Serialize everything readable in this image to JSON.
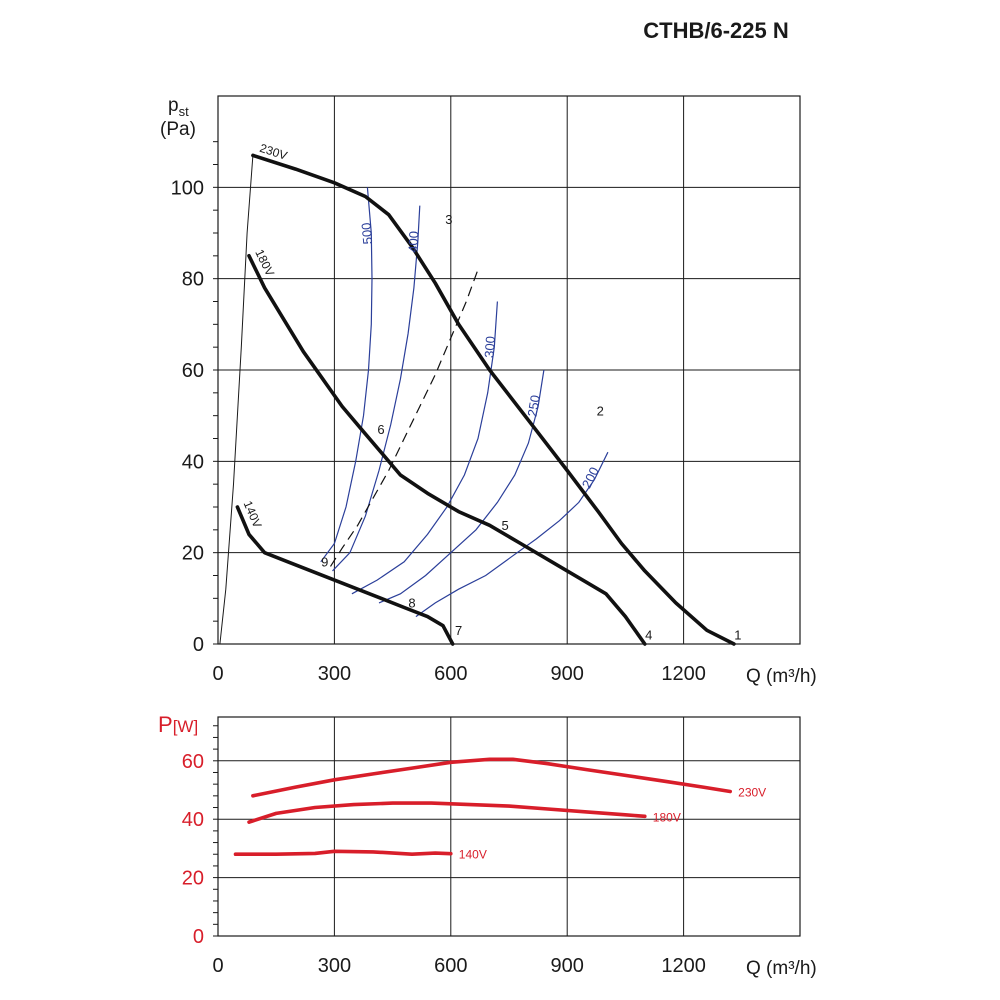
{
  "chart_data": [
    {
      "type": "line",
      "title": "CTHB/6-225 N",
      "xlabel": "Q (m³/h)",
      "ylabel": "p",
      "ylabel_sub": "st",
      "yunit": "(Pa)",
      "xlim": [
        0,
        1500
      ],
      "ylim": [
        0,
        120
      ],
      "xticks": [
        "0",
        "300",
        "600",
        "900",
        "1200"
      ],
      "yticks": [
        "0",
        "20",
        "40",
        "60",
        "80",
        "100"
      ],
      "grid": true,
      "colors": {
        "fan_curves": "#111111",
        "rpm_curves": "#2b3f9a",
        "system": "#111111"
      },
      "series": [
        {
          "name": "230V",
          "x": [
            90,
            200,
            300,
            380,
            440,
            500,
            560,
            620,
            700,
            800,
            900,
            980,
            1040,
            1100,
            1180,
            1260,
            1330
          ],
          "y": [
            107,
            104,
            101,
            98,
            94,
            87,
            79,
            70,
            60,
            49,
            38,
            29,
            22,
            16,
            9,
            3,
            0
          ]
        },
        {
          "name": "180V",
          "x": [
            80,
            120,
            170,
            220,
            270,
            320,
            380,
            420,
            470,
            540,
            620,
            700,
            780,
            860,
            940,
            1000,
            1050,
            1100
          ],
          "y": [
            85,
            78,
            71,
            64,
            58,
            52,
            46,
            42,
            37,
            33,
            29,
            26,
            22,
            18,
            14,
            11,
            6,
            0
          ]
        },
        {
          "name": "140V",
          "x": [
            50,
            80,
            120,
            180,
            240,
            300,
            360,
            420,
            480,
            540,
            580,
            605
          ],
          "y": [
            30,
            24,
            20,
            18,
            16,
            14,
            12,
            10,
            8,
            6,
            4,
            0
          ]
        }
      ],
      "rpm_curves": [
        {
          "label": "500",
          "x": [
            385,
            395,
            397,
            395,
            388,
            375,
            355,
            330,
            300,
            265
          ],
          "y": [
            100,
            90,
            80,
            70,
            60,
            50,
            40,
            30,
            22,
            18
          ]
        },
        {
          "label": "400",
          "x": [
            520,
            515,
            505,
            490,
            470,
            445,
            415,
            380,
            340,
            295
          ],
          "y": [
            96,
            88,
            78,
            68,
            58,
            48,
            38,
            28,
            20,
            16
          ]
        },
        {
          "label": "300",
          "x": [
            720,
            712,
            695,
            670,
            635,
            590,
            540,
            480,
            410,
            345
          ],
          "y": [
            75,
            65,
            55,
            45,
            37,
            30,
            24,
            18,
            14,
            11
          ]
        },
        {
          "label": "250",
          "x": [
            840,
            825,
            800,
            765,
            720,
            665,
            600,
            535,
            470,
            415
          ],
          "y": [
            60,
            52,
            44,
            37,
            31,
            25,
            20,
            15,
            11,
            9
          ]
        },
        {
          "label": "200",
          "x": [
            1005,
            970,
            930,
            880,
            820,
            755,
            690,
            620,
            560,
            510
          ],
          "y": [
            42,
            36,
            31,
            27,
            23,
            19,
            15,
            12,
            9,
            6
          ]
        }
      ],
      "system_curve": {
        "x": [
          290,
          320,
          360,
          400,
          440,
          480,
          520,
          560,
          600,
          640,
          670
        ],
        "y": [
          17,
          21,
          26,
          32,
          38,
          45,
          52,
          59,
          67,
          75,
          82
        ]
      },
      "stall_line": {
        "x": [
          5,
          20,
          40,
          60,
          75,
          90
        ],
        "y": [
          0,
          12,
          35,
          65,
          90,
          107
        ]
      },
      "operating_points": [
        {
          "label": "1",
          "x": 1340,
          "y": 1
        },
        {
          "label": "2",
          "x": 985,
          "y": 50
        },
        {
          "label": "3",
          "x": 595,
          "y": 92
        },
        {
          "label": "4",
          "x": 1110,
          "y": 1
        },
        {
          "label": "5",
          "x": 740,
          "y": 25
        },
        {
          "label": "6",
          "x": 420,
          "y": 46
        },
        {
          "label": "7",
          "x": 620,
          "y": 2
        },
        {
          "label": "8",
          "x": 500,
          "y": 8
        },
        {
          "label": "9",
          "x": 275,
          "y": 17
        }
      ]
    },
    {
      "type": "line",
      "ylabel": "P",
      "yunit": "[W]",
      "xlabel": "Q (m³/h)",
      "xlim": [
        0,
        1500
      ],
      "ylim": [
        0,
        75
      ],
      "xticks": [
        "0",
        "300",
        "600",
        "900",
        "1200"
      ],
      "yticks": [
        "0",
        "20",
        "40",
        "60"
      ],
      "grid": true,
      "colors": {
        "series": "#d81e2a",
        "axis_label": "#d81e2a"
      },
      "series": [
        {
          "name": "230V",
          "x": [
            90,
            200,
            300,
            400,
            500,
            600,
            700,
            760,
            850,
            950,
            1050,
            1150,
            1250,
            1320
          ],
          "y": [
            48,
            51,
            53.5,
            55.5,
            57.5,
            59.5,
            60.5,
            60.5,
            59,
            57,
            55,
            53,
            51,
            49.5
          ]
        },
        {
          "name": "180V",
          "x": [
            80,
            150,
            250,
            350,
            450,
            550,
            650,
            750,
            850,
            950,
            1050,
            1100
          ],
          "y": [
            39,
            42,
            44,
            45,
            45.5,
            45.5,
            45,
            44.5,
            43.5,
            42.5,
            41.5,
            41
          ]
        },
        {
          "name": "140V",
          "x": [
            45,
            150,
            250,
            300,
            400,
            500,
            560,
            600
          ],
          "y": [
            28,
            28,
            28.3,
            29,
            28.8,
            28,
            28.4,
            28.2
          ]
        }
      ]
    }
  ]
}
